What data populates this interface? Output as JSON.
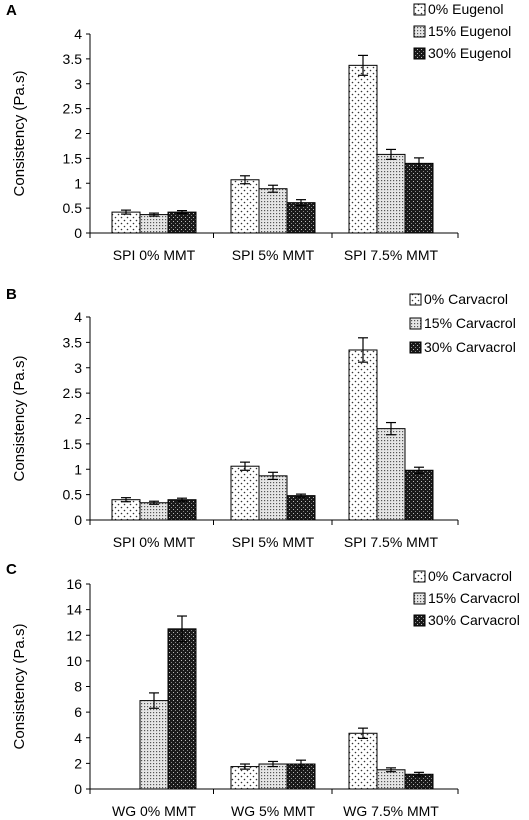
{
  "chart_data": [
    {
      "panel_label": "A",
      "type": "bar",
      "categories": [
        "SPI 0% MMT",
        "SPI 5% MMT",
        "SPI 7.5% MMT"
      ],
      "ylabel": "Consistency (Pa.s)",
      "ylim": [
        0,
        4
      ],
      "yticks": [
        "0",
        "0.5",
        "1",
        "1.5",
        "2",
        "2.5",
        "3",
        "3.5",
        "4"
      ],
      "yvals": [
        0,
        0.5,
        1,
        1.5,
        2,
        2.5,
        3,
        3.5,
        4
      ],
      "legend_position": "top-right",
      "grid": false,
      "series": [
        {
          "name": "0% Eugenol",
          "pattern": "dots",
          "values": [
            0.42,
            1.07,
            3.37
          ],
          "errors": [
            0.04,
            0.08,
            0.2
          ]
        },
        {
          "name": "15% Eugenol",
          "pattern": "dense",
          "values": [
            0.37,
            0.89,
            1.58
          ],
          "errors": [
            0.03,
            0.07,
            0.1
          ]
        },
        {
          "name": "30% Eugenol",
          "pattern": "dark",
          "values": [
            0.42,
            0.61,
            1.4
          ],
          "errors": [
            0.03,
            0.06,
            0.11
          ]
        }
      ]
    },
    {
      "panel_label": "B",
      "type": "bar",
      "categories": [
        "SPI 0% MMT",
        "SPI 5% MMT",
        "SPI 7.5% MMT"
      ],
      "ylabel": "Consistency (Pa.s)",
      "ylim": [
        0,
        4
      ],
      "yticks": [
        "0",
        "0.5",
        "1",
        "1.5",
        "2",
        "2.5",
        "3",
        "3.5",
        "4"
      ],
      "yvals": [
        0,
        0.5,
        1,
        1.5,
        2,
        2.5,
        3,
        3.5,
        4
      ],
      "legend_position": "top-right",
      "grid": false,
      "series": [
        {
          "name": "0% Carvacrol",
          "pattern": "dots",
          "values": [
            0.4,
            1.06,
            3.35
          ],
          "errors": [
            0.04,
            0.08,
            0.24
          ]
        },
        {
          "name": "15% Carvacrol",
          "pattern": "dense",
          "values": [
            0.34,
            0.87,
            1.8
          ],
          "errors": [
            0.03,
            0.07,
            0.12
          ]
        },
        {
          "name": "30% Carvacrol",
          "pattern": "dark",
          "values": [
            0.4,
            0.48,
            0.98
          ],
          "errors": [
            0.03,
            0.03,
            0.06
          ]
        }
      ]
    },
    {
      "panel_label": "C",
      "type": "bar",
      "categories": [
        "WG 0% MMT",
        "WG 5% MMT",
        "WG 7.5% MMT"
      ],
      "ylabel": "Consistency (Pa.s)",
      "ylim": [
        0,
        16
      ],
      "yticks": [
        "0",
        "2",
        "4",
        "6",
        "8",
        "10",
        "12",
        "14",
        "16"
      ],
      "yvals": [
        0,
        2,
        4,
        6,
        8,
        10,
        12,
        14,
        16
      ],
      "legend_position": "top-right",
      "grid": false,
      "series": [
        {
          "name": "0% Carvacrol",
          "pattern": "dots",
          "values": [
            0,
            1.75,
            4.35
          ],
          "errors": [
            0,
            0.2,
            0.4
          ]
        },
        {
          "name": "15% Carvacrol",
          "pattern": "dense",
          "values": [
            6.9,
            1.95,
            1.5
          ],
          "errors": [
            0.6,
            0.2,
            0.15
          ]
        },
        {
          "name": "30% Carvacrol",
          "pattern": "dark",
          "values": [
            12.5,
            1.95,
            1.15
          ],
          "errors": [
            1.0,
            0.3,
            0.15
          ]
        }
      ]
    }
  ]
}
